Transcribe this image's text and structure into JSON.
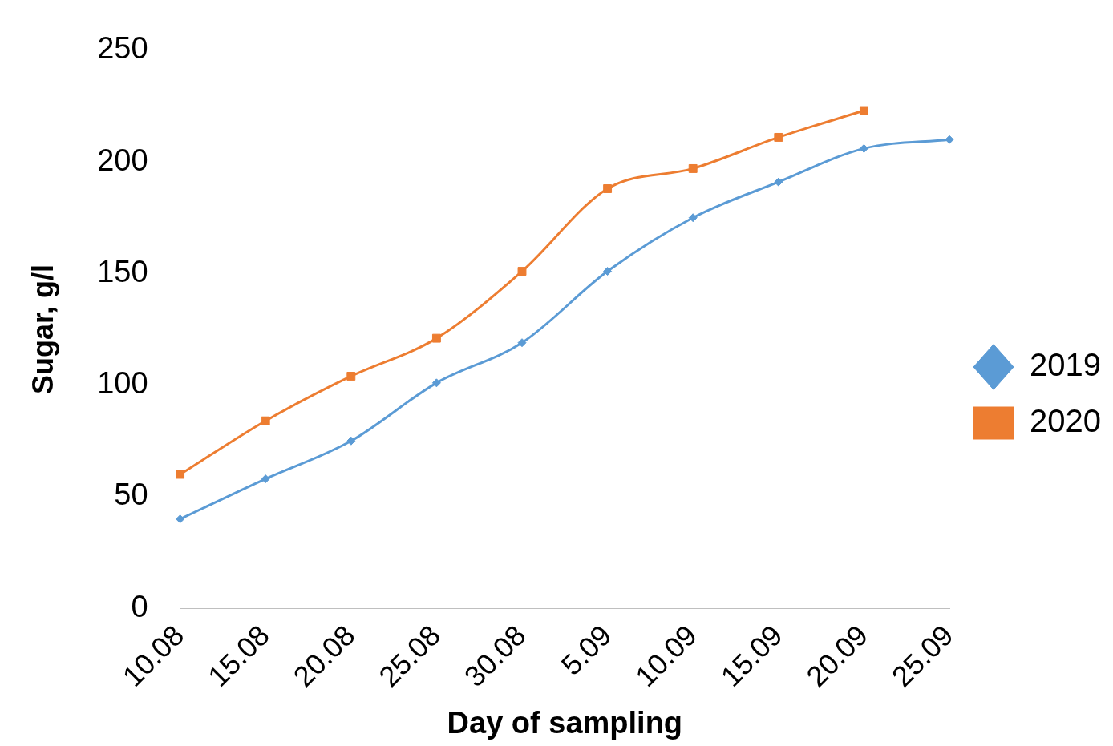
{
  "chart_data": {
    "type": "line",
    "xlabel": "Day of sampling",
    "ylabel": "Sugar, g/l",
    "categories": [
      "10.08",
      "15.08",
      "20.08",
      "25.08",
      "30.08",
      "5.09",
      "10.09",
      "15.09",
      "20.09",
      "25.09"
    ],
    "series": [
      {
        "name": "2019",
        "color": "#5b9bd5",
        "marker": "diamond",
        "values": [
          40,
          58,
          75,
          101,
          119,
          151,
          175,
          191,
          206,
          210
        ]
      },
      {
        "name": "2020",
        "color": "#ed7d31",
        "marker": "square",
        "values": [
          60,
          84,
          104,
          121,
          151,
          188,
          197,
          211,
          223,
          null
        ]
      }
    ],
    "ylim": [
      0,
      250
    ],
    "yticks": [
      0,
      50,
      100,
      150,
      200,
      250
    ],
    "grid": false,
    "legend": "right"
  }
}
